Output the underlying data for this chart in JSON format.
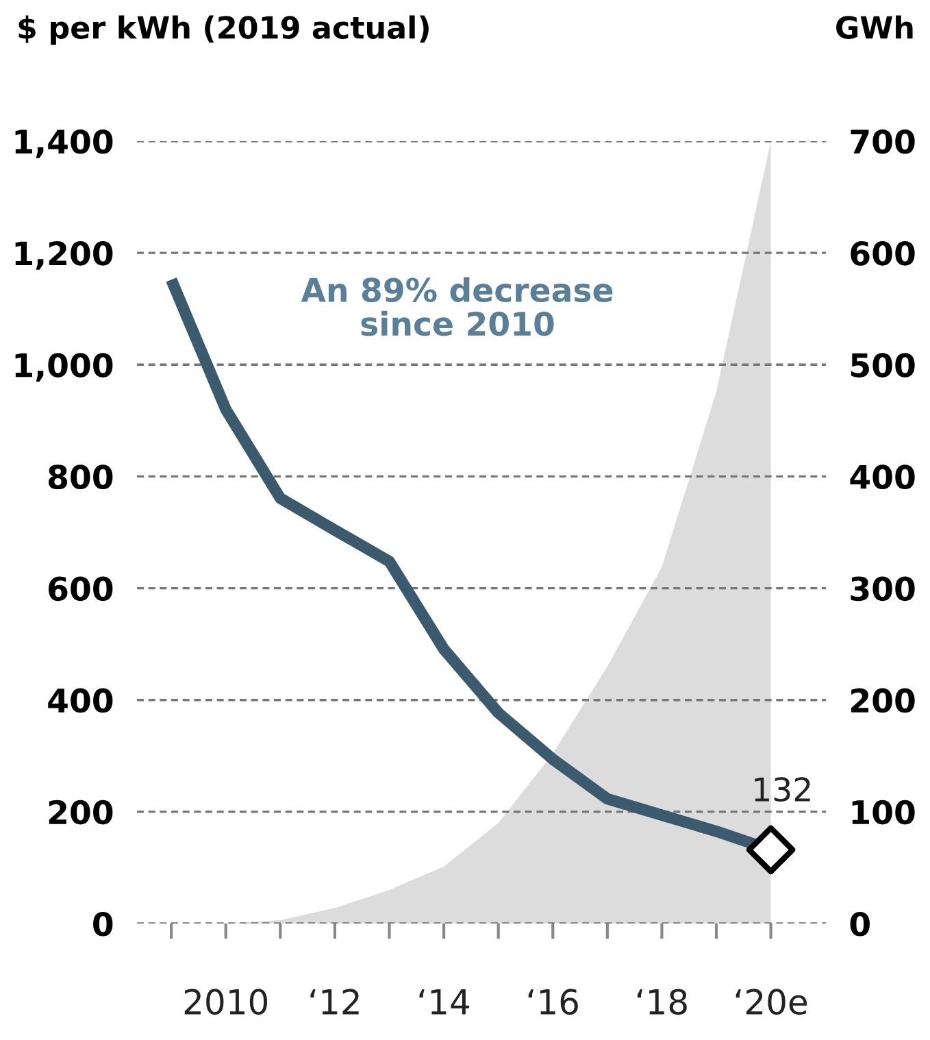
{
  "chart_data": {
    "type": "line",
    "ylabel": "$ per kWh (2019 actual)",
    "y2label": "GWh",
    "annotations": [
      "An 89% decrease\nsince 2010"
    ],
    "categories": [
      null,
      "2010",
      null,
      "‘12",
      null,
      "‘14",
      null,
      "‘16",
      null,
      "‘18",
      null,
      "‘20e"
    ],
    "series": [
      {
        "type": "area",
        "axis": "y2",
        "color": "#dcdcdc",
        "values": [
          0,
          0,
          3,
          14,
          30,
          51,
          90,
          152,
          230,
          319,
          476,
          700
        ]
      },
      {
        "color": "#3b5a6e",
        "values": [
          1152,
          920,
          761,
          704,
          648,
          491,
          377,
          294,
          223,
          194,
          165,
          132
        ]
      },
      {
        "type": "scatter",
        "color": "#000000",
        "marker": "diamond",
        "values": [
          null,
          null,
          null,
          null,
          null,
          null,
          null,
          null,
          null,
          null,
          null,
          132
        ],
        "value_labels": [
          null,
          null,
          null,
          null,
          null,
          null,
          null,
          null,
          null,
          null,
          null,
          "132"
        ]
      }
    ],
    "ylim": [
      0,
      1400
    ],
    "yticks": [
      {
        "value": 0,
        "label": "0"
      },
      {
        "value": 200,
        "label": "200"
      },
      {
        "value": 400,
        "label": "400"
      },
      {
        "value": 600,
        "label": "600"
      },
      {
        "value": 800,
        "label": "800"
      },
      {
        "value": 1000,
        "label": "1,000"
      },
      {
        "value": 1200,
        "label": "1,200"
      },
      {
        "value": 1400,
        "label": "1,400"
      }
    ],
    "y2lim": [
      0,
      700
    ],
    "y2ticks": [
      0,
      100,
      200,
      300,
      400,
      500,
      600,
      700
    ],
    "grid": "y",
    "legend": false
  }
}
